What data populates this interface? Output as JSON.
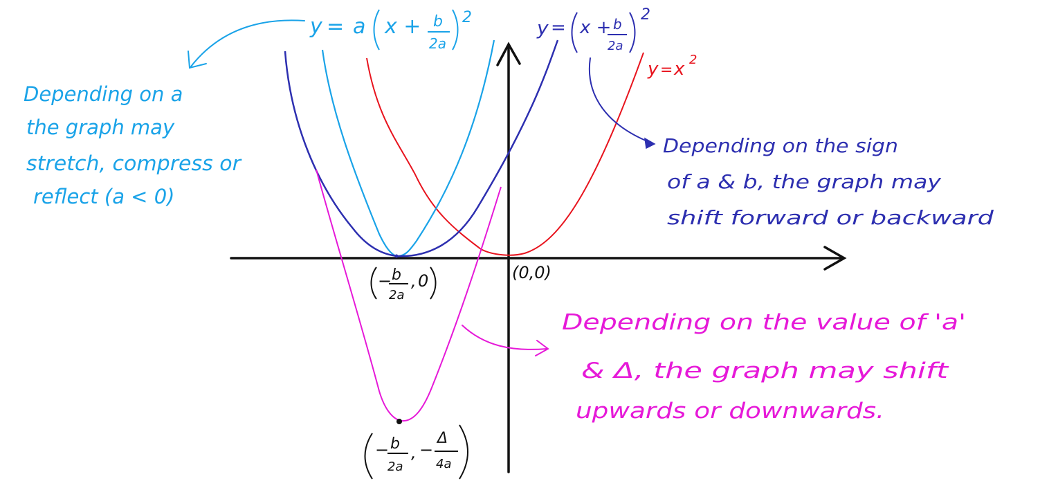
{
  "colors": {
    "black": "#111111",
    "cyan": "#1aa3e8",
    "blue": "#2d2fb0",
    "red": "#e8141e",
    "magenta": "#e619d8"
  },
  "equations": {
    "cyan": {
      "lhs": "y",
      "eq": "=",
      "a": "a",
      "x_plus": "x +",
      "frac_num": "b",
      "frac_den": "2a",
      "exp": "2"
    },
    "blue": {
      "lhs": "y",
      "eq": "=",
      "x_plus": "x +",
      "frac_num": "b",
      "frac_den": "2a",
      "exp": "2"
    },
    "red": {
      "lhs": "y",
      "eq": "=",
      "x": "x",
      "exp": "2"
    }
  },
  "notes": {
    "cyan": [
      "Depending on a",
      "the graph may",
      "stretch, compress or",
      "reflect (a < 0)"
    ],
    "blue": [
      "Depending on the sign",
      "of a & b, the graph may",
      "shift forward or backward"
    ],
    "magenta": [
      "Depending on the value of 'a'",
      "& Δ, the graph may shift",
      "upwards or downwards."
    ]
  },
  "points": {
    "origin": "(0,0)",
    "vertex_x": {
      "neg": "−",
      "num": "b",
      "den": "2a",
      "y": "0"
    },
    "vertex_min": {
      "neg1": "−",
      "num1": "b",
      "den1": "2a",
      "neg2": "−",
      "num2": "Δ",
      "den2": "4a"
    }
  }
}
